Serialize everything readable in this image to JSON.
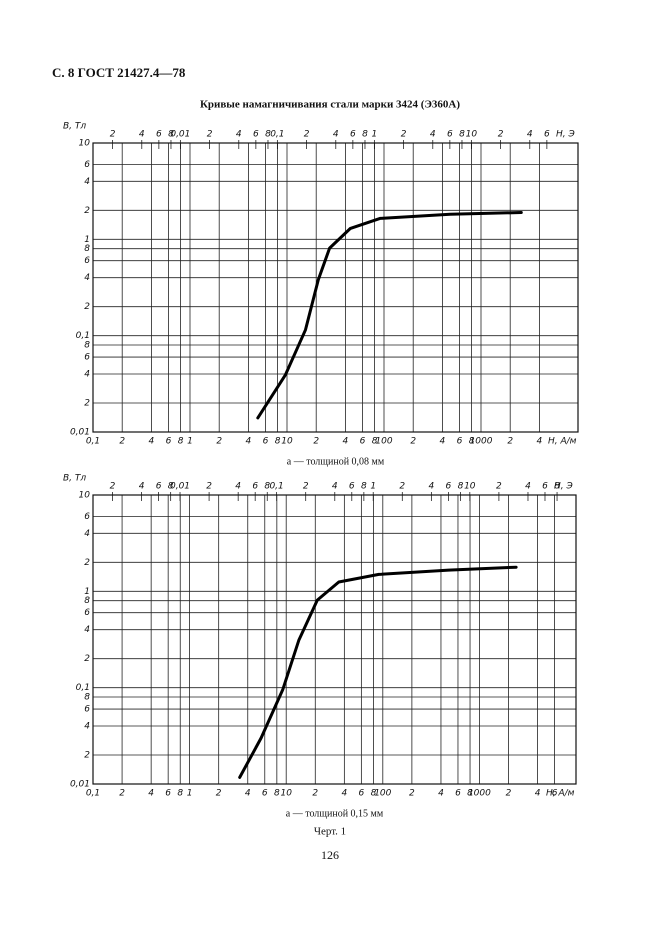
{
  "page": {
    "header": "С. 8 ГОСТ 21427.4—78",
    "title": "Кривые намагничивания стали марки 3424 (Э360А)",
    "figure": "Черт. 1",
    "page_number": "126"
  },
  "chart_data": [
    {
      "type": "line",
      "caption": "а — толщиной 0,08 мм",
      "y_label": "B, Тл",
      "x_label": "H, A/м",
      "x2_label": "H, Э",
      "log_x": true,
      "log_y": true,
      "grid": true,
      "xlim": [
        0.1,
        10000
      ],
      "ylim": [
        0.01,
        10
      ],
      "x2lim": [
        0.0012566,
        125.66
      ],
      "xticks": [
        {
          "value": 0.1,
          "label": "0,1"
        },
        {
          "value": 0.2,
          "label": "2"
        },
        {
          "value": 0.4,
          "label": "4"
        },
        {
          "value": 0.6,
          "label": "6"
        },
        {
          "value": 0.8,
          "label": "8"
        },
        1,
        2,
        4,
        6,
        8,
        10,
        {
          "value": 20,
          "label": "2"
        },
        {
          "value": 40,
          "label": "4"
        },
        {
          "value": 60,
          "label": "6"
        },
        {
          "value": 80,
          "label": "8"
        },
        100,
        {
          "value": 200,
          "label": "2"
        },
        {
          "value": 400,
          "label": "4"
        },
        {
          "value": 600,
          "label": "6"
        },
        {
          "value": 800,
          "label": "8"
        },
        1000,
        {
          "value": 2000,
          "label": "2"
        },
        {
          "value": 4000,
          "label": "4"
        }
      ],
      "x2ticks": [
        {
          "value": 0.002,
          "label": "2"
        },
        {
          "value": 0.004,
          "label": "4"
        },
        {
          "value": 0.006,
          "label": "6"
        },
        {
          "value": 0.008,
          "label": "8"
        },
        {
          "value": 0.01,
          "label": "0,01"
        },
        {
          "value": 0.02,
          "label": "2"
        },
        {
          "value": 0.04,
          "label": "4"
        },
        {
          "value": 0.06,
          "label": "6"
        },
        {
          "value": 0.08,
          "label": "8"
        },
        {
          "value": 0.1,
          "label": "0,1"
        },
        {
          "value": 0.2,
          "label": "2"
        },
        {
          "value": 0.4,
          "label": "4"
        },
        {
          "value": 0.6,
          "label": "6"
        },
        {
          "value": 0.8,
          "label": "8"
        },
        1,
        2,
        4,
        6,
        8,
        10,
        {
          "value": 20,
          "label": "2"
        },
        {
          "value": 40,
          "label": "4"
        },
        {
          "value": 60,
          "label": "6"
        }
      ],
      "yticks": [
        {
          "value": 0.01,
          "label": "0,01"
        },
        {
          "value": 0.02,
          "label": "2"
        },
        {
          "value": 0.04,
          "label": "4"
        },
        {
          "value": 0.06,
          "label": "6"
        },
        {
          "value": 0.08,
          "label": "8"
        },
        {
          "value": 0.1,
          "label": "0,1"
        },
        {
          "value": 0.2,
          "label": "2"
        },
        {
          "value": 0.4,
          "label": "4"
        },
        {
          "value": 0.6,
          "label": "6"
        },
        {
          "value": 0.8,
          "label": "8"
        },
        1,
        2,
        4,
        6,
        10
      ],
      "x": [
        5.0,
        9.6,
        15.5,
        21,
        27.5,
        45,
        91,
        480,
        2600
      ],
      "series": [
        {
          "color": "#000000",
          "values": [
            0.014,
            0.039,
            0.115,
            0.38,
            0.81,
            1.3,
            1.65,
            1.82,
            1.9
          ]
        }
      ]
    },
    {
      "type": "line",
      "caption": "а — толщиной 0,15 мм",
      "y_label": "B, Тл",
      "x_label": "H, A/м",
      "x2_label": "H, Э",
      "log_x": true,
      "log_y": true,
      "grid": true,
      "xlim": [
        0.1,
        10000
      ],
      "ylim": [
        0.01,
        10
      ],
      "x2lim": [
        0.0012566,
        125.66
      ],
      "xticks": [
        {
          "value": 0.1,
          "label": "0,1"
        },
        {
          "value": 0.2,
          "label": "2"
        },
        {
          "value": 0.4,
          "label": "4"
        },
        {
          "value": 0.6,
          "label": "6"
        },
        {
          "value": 0.8,
          "label": "8"
        },
        1,
        2,
        4,
        6,
        8,
        10,
        {
          "value": 20,
          "label": "2"
        },
        {
          "value": 40,
          "label": "4"
        },
        {
          "value": 60,
          "label": "6"
        },
        {
          "value": 80,
          "label": "8"
        },
        100,
        {
          "value": 200,
          "label": "2"
        },
        {
          "value": 400,
          "label": "4"
        },
        {
          "value": 600,
          "label": "6"
        },
        {
          "value": 800,
          "label": "8"
        },
        1000,
        {
          "value": 2000,
          "label": "2"
        },
        {
          "value": 4000,
          "label": "4"
        },
        {
          "value": 6000,
          "label": "6"
        }
      ],
      "x2ticks": [
        {
          "value": 0.002,
          "label": "2"
        },
        {
          "value": 0.004,
          "label": "4"
        },
        {
          "value": 0.006,
          "label": "6"
        },
        {
          "value": 0.008,
          "label": "8"
        },
        {
          "value": 0.01,
          "label": "0,01"
        },
        {
          "value": 0.02,
          "label": "2"
        },
        {
          "value": 0.04,
          "label": "4"
        },
        {
          "value": 0.06,
          "label": "6"
        },
        {
          "value": 0.08,
          "label": "8"
        },
        {
          "value": 0.1,
          "label": "0,1"
        },
        {
          "value": 0.2,
          "label": "2"
        },
        {
          "value": 0.4,
          "label": "4"
        },
        {
          "value": 0.6,
          "label": "6"
        },
        {
          "value": 0.8,
          "label": "8"
        },
        1,
        2,
        4,
        6,
        8,
        10,
        {
          "value": 20,
          "label": "2"
        },
        {
          "value": 40,
          "label": "4"
        },
        {
          "value": 60,
          "label": "6"
        },
        {
          "value": 80,
          "label": "8"
        }
      ],
      "yticks": [
        {
          "value": 0.01,
          "label": "0,01"
        },
        {
          "value": 0.02,
          "label": "2"
        },
        {
          "value": 0.04,
          "label": "4"
        },
        {
          "value": 0.06,
          "label": "6"
        },
        {
          "value": 0.08,
          "label": "8"
        },
        {
          "value": 0.1,
          "label": "0,1"
        },
        {
          "value": 0.2,
          "label": "2"
        },
        {
          "value": 0.4,
          "label": "4"
        },
        {
          "value": 0.6,
          "label": "6"
        },
        {
          "value": 0.8,
          "label": "8"
        },
        1,
        2,
        4,
        6,
        10
      ],
      "x": [
        3.3,
        5.5,
        9.2,
        13.5,
        21,
        35,
        91,
        480,
        2400
      ],
      "series": [
        {
          "color": "#000000",
          "values": [
            0.0117,
            0.03,
            0.095,
            0.31,
            0.81,
            1.25,
            1.5,
            1.66,
            1.78
          ]
        }
      ]
    }
  ]
}
